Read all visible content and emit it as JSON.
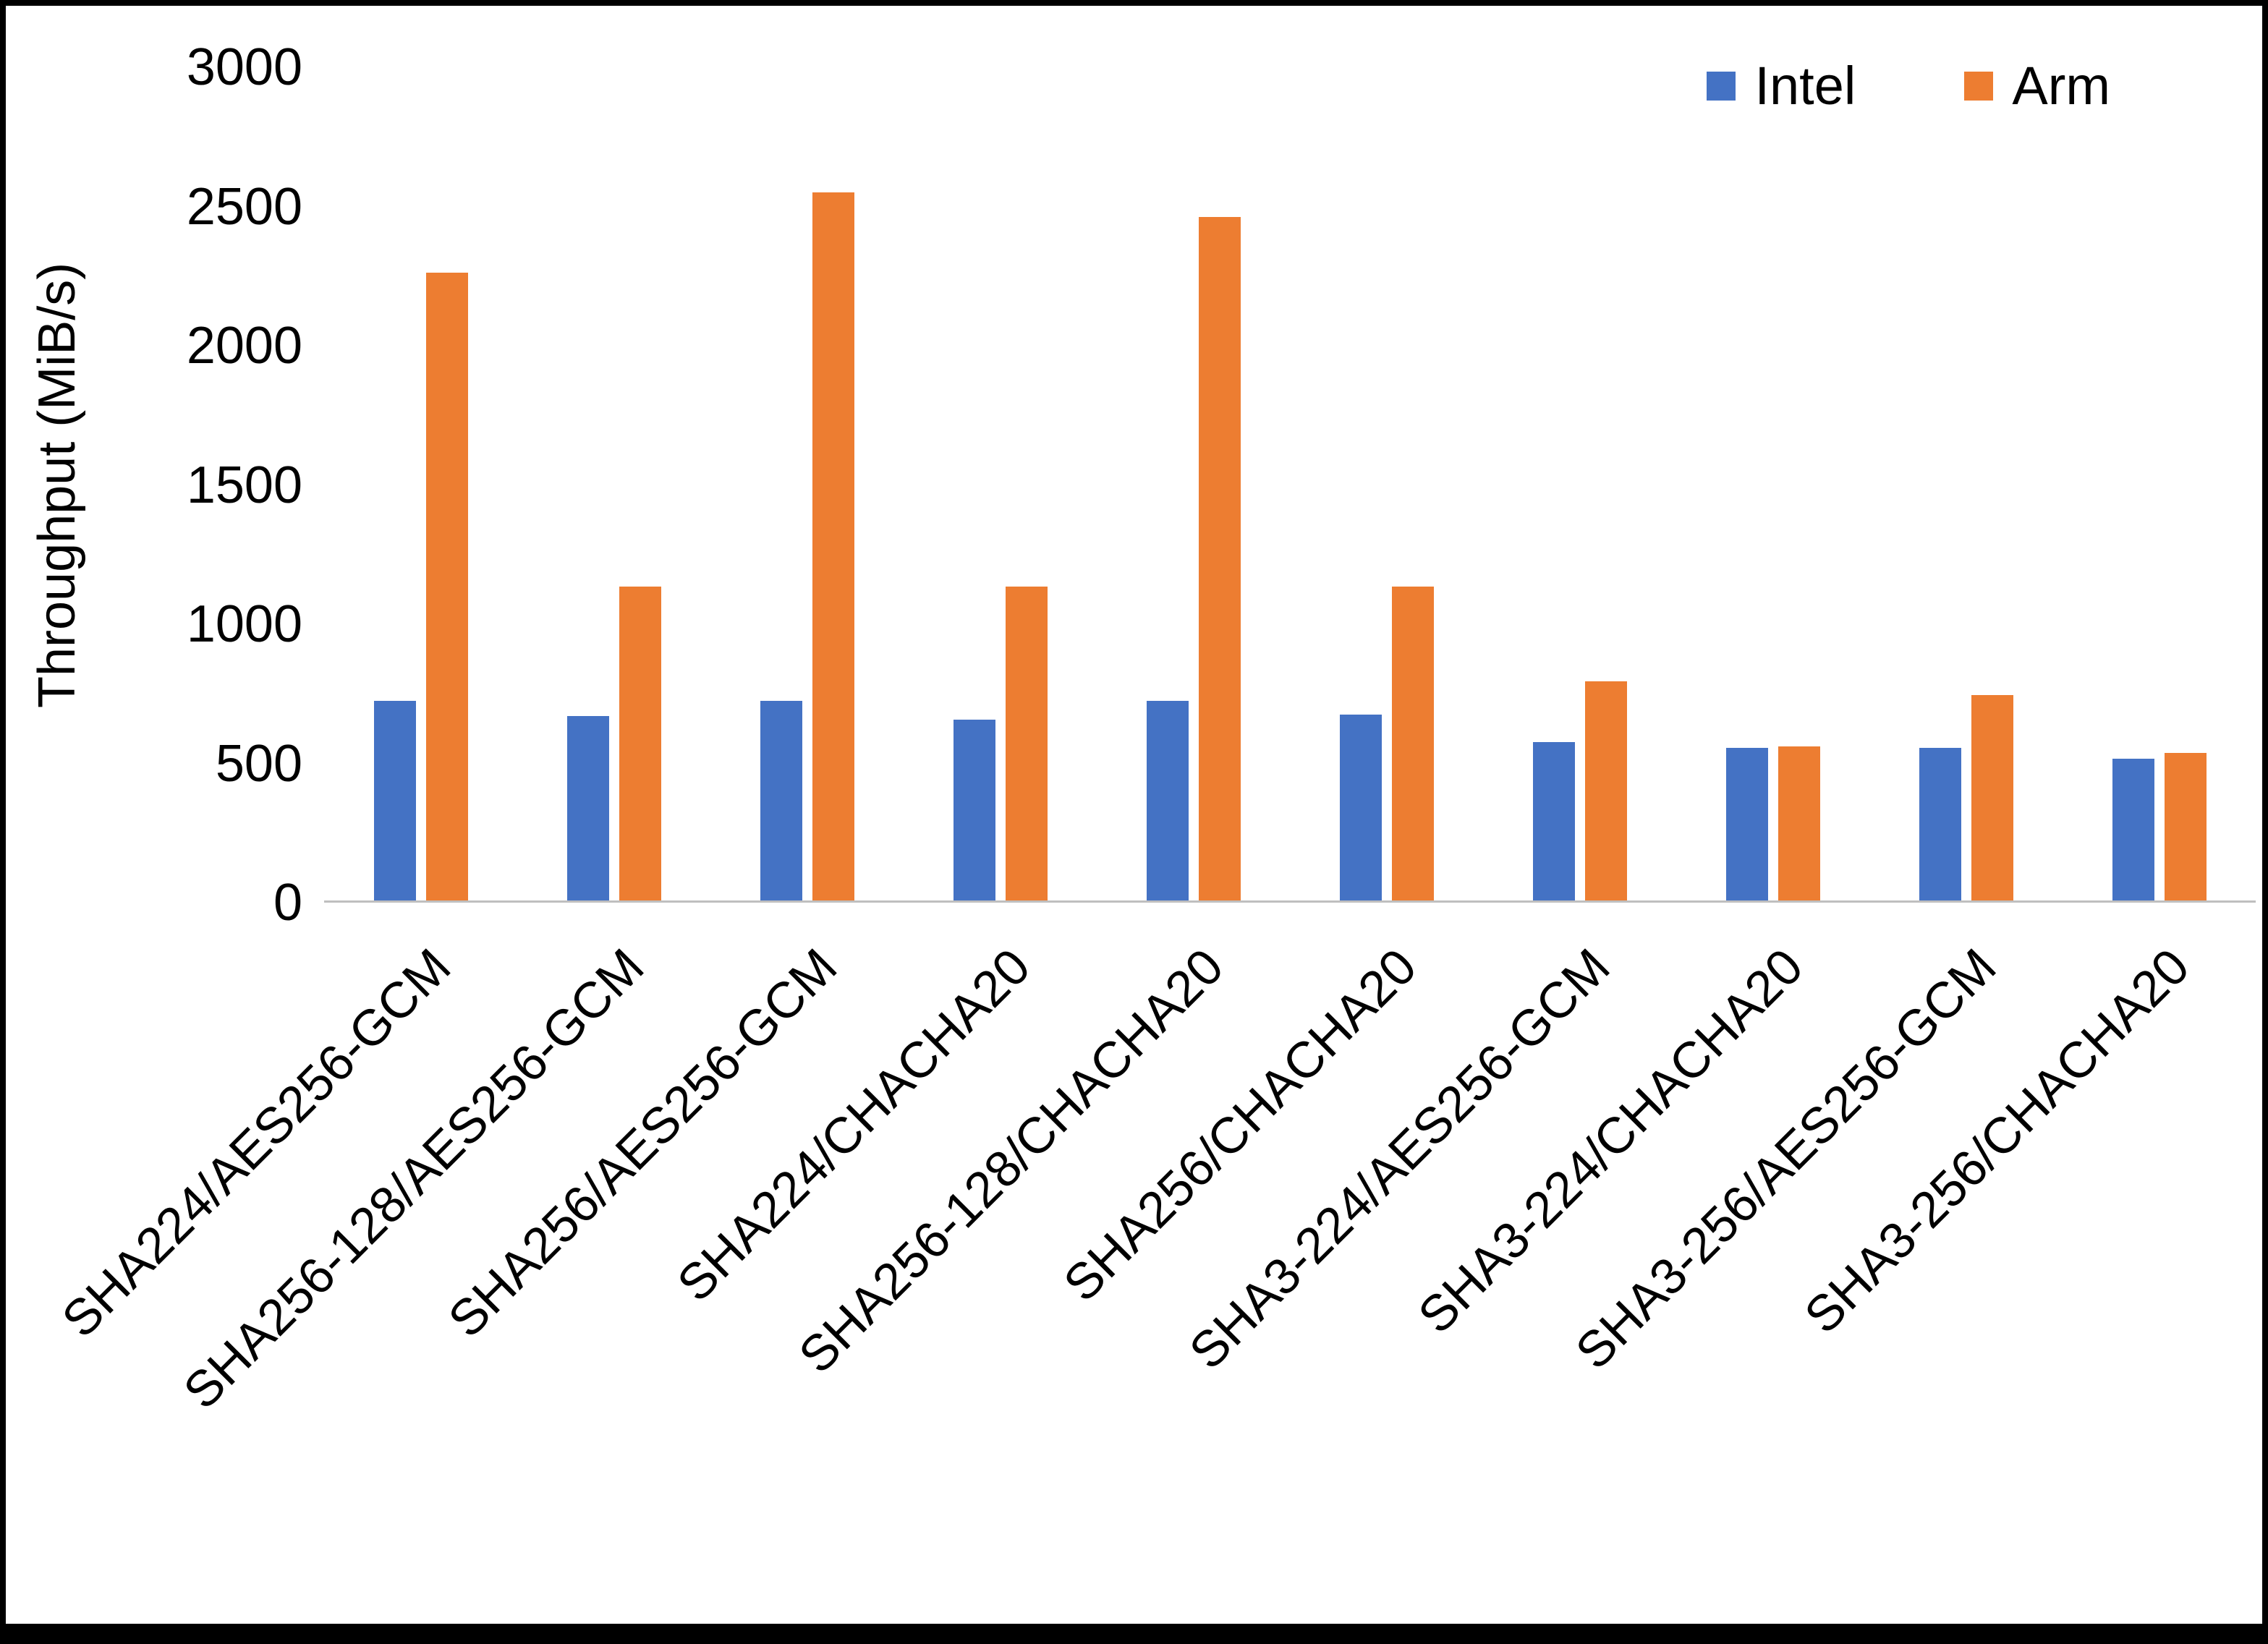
{
  "chart_data": {
    "type": "bar",
    "title": "",
    "xlabel": "",
    "ylabel": "Throughput (MiB/s)",
    "ylim": [
      0,
      3000
    ],
    "yticks": [
      0,
      500,
      1000,
      1500,
      2000,
      2500,
      3000
    ],
    "grid": false,
    "legend_position": "top-right",
    "categories": [
      "SHA224/AES256-GCM",
      "SHA256-128/AES256-GCM",
      "SHA256/AES256-GCM",
      "SHA224/CHACHA20",
      "SHA256-128/CHACHA20",
      "SHA256/CHACHA20",
      "SHA3-224/AES256-GCM",
      "SHA3-224/CHACHA20",
      "SHA3-256/AES256-GCM",
      "SHA3-256/CHACHA20"
    ],
    "series": [
      {
        "name": "Intel",
        "color": "#4472C4",
        "values": [
          720,
          665,
          720,
          650,
          720,
          670,
          570,
          550,
          550,
          510
        ]
      },
      {
        "name": "Arm",
        "color": "#ED7D31",
        "values": [
          2260,
          1130,
          2550,
          1130,
          2460,
          1130,
          790,
          555,
          740,
          530
        ]
      }
    ],
    "axis_line_color": "#bfbfbf",
    "background_color": "#ffffff",
    "frame_color": "#000000",
    "text_color": "#000000"
  }
}
